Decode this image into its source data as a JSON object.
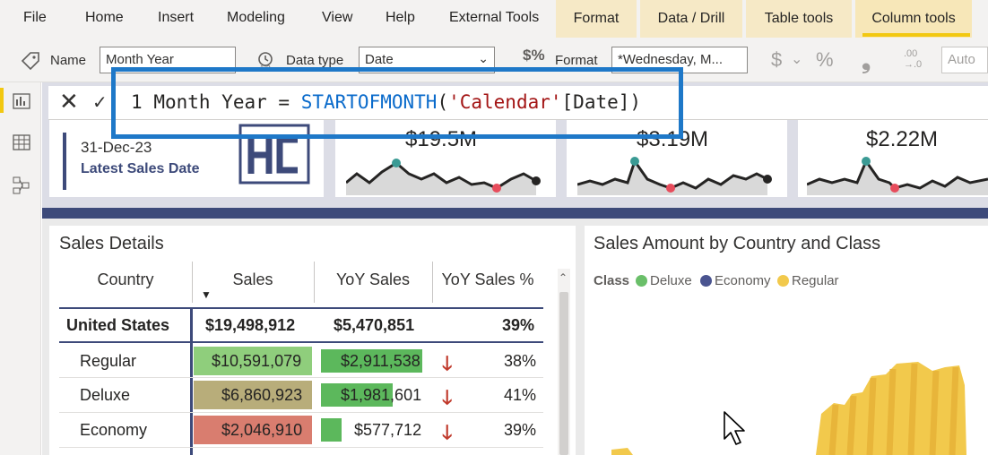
{
  "menu": {
    "items": [
      "File",
      "Home",
      "Insert",
      "Modeling",
      "View",
      "Help",
      "External Tools"
    ],
    "context_tabs": [
      "Format",
      "Data / Drill",
      "Table tools",
      "Column tools"
    ],
    "active_tab": "Column tools"
  },
  "ribbon": {
    "name_label": "Name",
    "name_value": "Month Year",
    "datatype_label": "Data type",
    "datatype_value": "Date",
    "format_label": "Format",
    "format_value": "*Wednesday, M...",
    "currency_symbol": "$",
    "percent_symbol": "%",
    "comma_symbol": "❟",
    "decimals_top": ".00",
    "decimals_bottom": "→.0",
    "auto_value": "Auto"
  },
  "formula_bar": {
    "line_no": "1",
    "column_name": "Month Year",
    "equals": "=",
    "function": "STARTOFMONTH",
    "open_paren": "(",
    "table_ref": "'Calendar'",
    "column_ref": "[Date]",
    "close_paren": ")"
  },
  "kpi": {
    "date_value": "31-Dec-23",
    "date_label": "Latest Sales Date",
    "card1_value": "$19.5M",
    "card2_value": "$3.19M",
    "card3_value": "$2.22M"
  },
  "table_visual": {
    "title": "Sales Details",
    "headers": [
      "Country",
      "Sales",
      "YoY Sales",
      "YoY Sales %"
    ],
    "total": {
      "country": "United States",
      "sales": "$19,498,912",
      "yoy": "$5,470,851",
      "yoy_pct": "39%"
    },
    "rows": [
      {
        "country": "Regular",
        "sales": "$10,591,079",
        "yoy": "$2,911,538",
        "yoy_pct": "38%"
      },
      {
        "country": "Deluxe",
        "sales": "$6,860,923",
        "yoy": "$1,981,601",
        "yoy_pct": "41%"
      },
      {
        "country": "Economy",
        "sales": "$2,046,910",
        "yoy": "$577,712",
        "yoy_pct": "39%"
      }
    ],
    "yoy_bar_fraction": [
      0.99,
      0.7,
      0.2
    ],
    "colors": {
      "regular": "#8fce7c",
      "deluxe": "#b8ad7a",
      "economy": "#d97d6f",
      "yoy_bar": "#5cb85c",
      "down_arrow": "#c0392b"
    }
  },
  "chart_visual": {
    "title": "Sales Amount by Country and Class",
    "legend_title": "Class",
    "legend": [
      {
        "label": "Deluxe",
        "color": "#6abf69"
      },
      {
        "label": "Economy",
        "color": "#4a5490"
      },
      {
        "label": "Regular",
        "color": "#f2c94c"
      }
    ]
  }
}
